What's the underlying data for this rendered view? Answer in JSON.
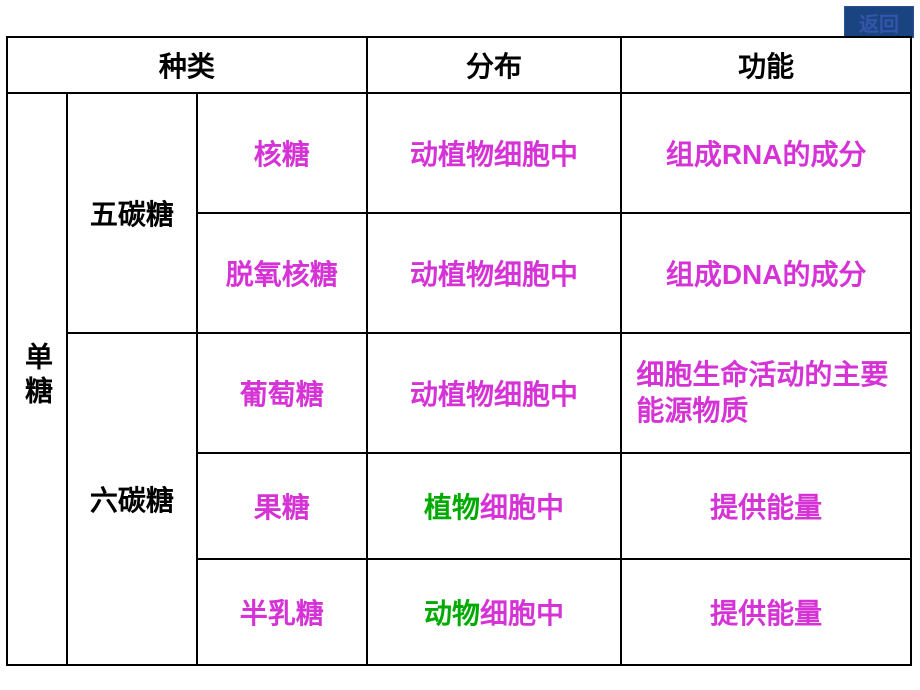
{
  "colors": {
    "text_black": "#000000",
    "text_magenta": "#d633d6",
    "text_green": "#00aa00",
    "return_bg": "#1a4480",
    "return_fg": "#3355aa",
    "border": "#000000",
    "background": "#ffffff"
  },
  "return_button": "返回",
  "headers": {
    "type": "种类",
    "distribution": "分布",
    "function": "功能"
  },
  "category": "单糖",
  "subcat1": "五碳糖",
  "subcat2": "六碳糖",
  "rows": {
    "r1": {
      "name": "核糖",
      "dist": "动植物细胞中",
      "func": "组成RNA的成分"
    },
    "r2": {
      "name": "脱氧核糖",
      "dist": "动植物细胞中",
      "func": "组成DNA的成分"
    },
    "r3": {
      "name": "葡萄糖",
      "dist": "动植物细胞中",
      "func": "细胞生命活动的主要能源物质"
    },
    "r4": {
      "name": "果糖",
      "dist_prefix": "植物",
      "dist_suffix": "细胞中",
      "func": "提供能量"
    },
    "r5": {
      "name": "半乳糖",
      "dist_prefix": "动物",
      "dist_suffix": "细胞中",
      "func": "提供能量"
    }
  }
}
